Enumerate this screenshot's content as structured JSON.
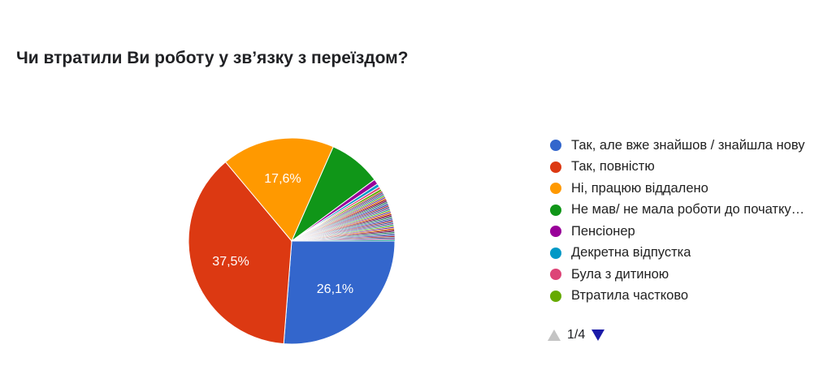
{
  "title": "Чи втратили Ви роботу у зв’язку з переїздом?",
  "chart_data": {
    "type": "pie",
    "title": "Чи втратили Ви роботу у зв’язку з переїздом?",
    "slices": [
      {
        "label": "Так, але вже знайшов / знайшла нову",
        "value": 26.1,
        "color": "#3366cc",
        "data_label": "26,1%"
      },
      {
        "label": "Так, повністю",
        "value": 37.5,
        "color": "#dc3912",
        "data_label": "37,5%"
      },
      {
        "label": "Ні, працюю віддалено",
        "value": 17.6,
        "color": "#ff9900",
        "data_label": "17,6%"
      },
      {
        "label": "Не мав/ не мала роботи до початку…",
        "value": 8.2,
        "color": "#109618",
        "data_label": ""
      },
      {
        "label": "Пенсіонер",
        "value": 0.8,
        "color": "#990099",
        "data_label": ""
      },
      {
        "label": "Декретна відпустка",
        "value": 0.5,
        "color": "#0099c6",
        "data_label": ""
      },
      {
        "label": "Була з дитиною",
        "value": 0.4,
        "color": "#dd4477",
        "data_label": ""
      },
      {
        "label": "Втратила частково",
        "value": 0.4,
        "color": "#66aa00",
        "data_label": ""
      }
    ],
    "minor_slices": {
      "count": 40,
      "value_each": 0.2,
      "colors": [
        "#b82e2e",
        "#316395",
        "#994499",
        "#22aa99",
        "#aaaa11",
        "#6633cc",
        "#e67300",
        "#8b0707",
        "#651067",
        "#329262",
        "#5574a6",
        "#3b3eac"
      ]
    },
    "legend_position": "right"
  },
  "pager": {
    "text": "1/4"
  }
}
